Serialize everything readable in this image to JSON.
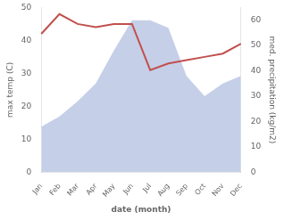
{
  "chart_data": {
    "type": "line",
    "xlabel": "date (month)",
    "ylabel": "max temp (C)",
    "y2label": "med. precipitation (kg/m2)",
    "categories": [
      "Jan",
      "Feb",
      "Mar",
      "Apr",
      "May",
      "Jun",
      "Jul",
      "Aug",
      "Sep",
      "Oct",
      "Nov",
      "Dec"
    ],
    "series": [
      {
        "type": "line",
        "color": "#c0504d",
        "values": [
          42,
          48,
          45,
          44,
          45,
          45,
          31,
          33,
          34,
          35,
          36,
          39
        ]
      },
      {
        "type": "area",
        "color": "#c5cfe8",
        "axis": "y2",
        "values": [
          18,
          22,
          28,
          35,
          48,
          60,
          60,
          57,
          38,
          30,
          35,
          38
        ]
      }
    ],
    "ylim": [
      0,
      50
    ],
    "yticks": [
      0,
      10,
      20,
      30,
      40,
      50
    ],
    "y2lim": [
      0,
      65
    ],
    "y2ticks": [
      0,
      10,
      20,
      30,
      40,
      50,
      60
    ],
    "grid": false
  }
}
